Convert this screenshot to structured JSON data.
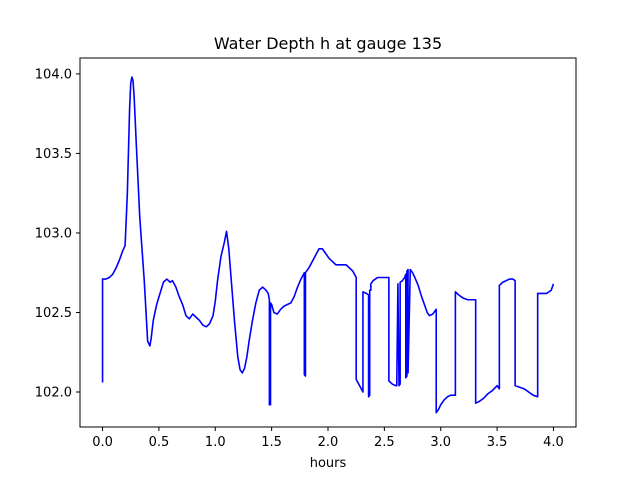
{
  "chart_data": {
    "type": "line",
    "title": "Water Depth h at gauge 135",
    "xlabel": "hours",
    "ylabel": "",
    "xlim": [
      -0.2,
      4.2
    ],
    "ylim": [
      101.78,
      104.1
    ],
    "xticks": [
      0.0,
      0.5,
      1.0,
      1.5,
      2.0,
      2.5,
      3.0,
      3.5,
      4.0
    ],
    "xtick_labels": [
      "0.0",
      "0.5",
      "1.0",
      "1.5",
      "2.0",
      "2.5",
      "3.0",
      "3.5",
      "4.0"
    ],
    "yticks": [
      102.0,
      102.5,
      103.0,
      103.5,
      104.0
    ],
    "ytick_labels": [
      "102.0",
      "102.5",
      "103.0",
      "103.5",
      "104.0"
    ],
    "grid": false,
    "legend": "none",
    "series": [
      {
        "color": "#0000ff",
        "x": [
          0.0,
          0.0,
          0.03,
          0.06,
          0.09,
          0.12,
          0.15,
          0.18,
          0.2,
          0.22,
          0.24,
          0.25,
          0.26,
          0.27,
          0.28,
          0.3,
          0.33,
          0.37,
          0.4,
          0.42,
          0.43,
          0.45,
          0.48,
          0.51,
          0.54,
          0.57,
          0.6,
          0.62,
          0.65,
          0.68,
          0.71,
          0.74,
          0.77,
          0.8,
          0.83,
          0.86,
          0.89,
          0.92,
          0.95,
          0.98,
          1.0,
          1.02,
          1.05,
          1.08,
          1.1,
          1.12,
          1.14,
          1.17,
          1.2,
          1.22,
          1.24,
          1.26,
          1.28,
          1.3,
          1.33,
          1.36,
          1.39,
          1.42,
          1.45,
          1.47,
          1.48,
          1.48,
          1.49,
          1.49,
          1.5,
          1.52,
          1.55,
          1.58,
          1.61,
          1.64,
          1.67,
          1.7,
          1.73,
          1.76,
          1.79,
          1.79,
          1.8,
          1.8,
          1.83,
          1.86,
          1.89,
          1.92,
          1.95,
          1.98,
          2.01,
          2.04,
          2.07,
          2.1,
          2.13,
          2.16,
          2.19,
          2.22,
          2.25,
          2.25,
          2.28,
          2.31,
          2.31,
          2.34,
          2.36,
          2.36,
          2.37,
          2.37,
          2.38,
          2.38,
          2.4,
          2.42,
          2.44,
          2.46,
          2.48,
          2.5,
          2.52,
          2.54,
          2.54,
          2.57,
          2.6,
          2.61,
          2.62,
          2.62,
          2.63,
          2.64,
          2.64,
          2.66,
          2.68,
          2.69,
          2.69,
          2.7,
          2.7,
          2.71,
          2.71,
          2.73,
          2.75,
          2.77,
          2.8,
          2.83,
          2.86,
          2.88,
          2.9,
          2.93,
          2.95,
          2.96,
          2.96,
          2.98,
          3.0,
          3.03,
          3.06,
          3.09,
          3.12,
          3.13,
          3.13,
          3.16,
          3.2,
          3.24,
          3.28,
          3.31,
          3.31,
          3.34,
          3.38,
          3.42,
          3.46,
          3.5,
          3.52,
          3.52,
          3.55,
          3.58,
          3.61,
          3.64,
          3.66,
          3.66,
          3.7,
          3.74,
          3.78,
          3.82,
          3.86,
          3.86,
          3.9,
          3.94,
          3.98,
          4.0
        ],
        "y": [
          102.06,
          102.71,
          102.71,
          102.72,
          102.74,
          102.78,
          102.83,
          102.89,
          102.92,
          103.25,
          103.78,
          103.94,
          103.98,
          103.96,
          103.86,
          103.55,
          103.1,
          102.7,
          102.32,
          102.29,
          102.33,
          102.45,
          102.55,
          102.62,
          102.69,
          102.71,
          102.69,
          102.7,
          102.66,
          102.6,
          102.55,
          102.48,
          102.46,
          102.49,
          102.47,
          102.45,
          102.42,
          102.41,
          102.43,
          102.48,
          102.57,
          102.7,
          102.85,
          102.94,
          103.01,
          102.9,
          102.72,
          102.45,
          102.22,
          102.14,
          102.12,
          102.15,
          102.22,
          102.32,
          102.45,
          102.56,
          102.64,
          102.66,
          102.64,
          102.62,
          102.58,
          101.92,
          101.92,
          102.56,
          102.55,
          102.5,
          102.49,
          102.52,
          102.54,
          102.55,
          102.56,
          102.6,
          102.66,
          102.71,
          102.75,
          102.11,
          102.1,
          102.75,
          102.78,
          102.82,
          102.86,
          102.9,
          102.9,
          102.87,
          102.84,
          102.82,
          102.8,
          102.8,
          102.8,
          102.8,
          102.78,
          102.76,
          102.72,
          102.08,
          102.04,
          102.0,
          102.63,
          102.62,
          102.61,
          101.97,
          101.98,
          102.64,
          102.64,
          102.68,
          102.7,
          102.71,
          102.72,
          102.72,
          102.72,
          102.72,
          102.72,
          102.72,
          102.07,
          102.05,
          102.04,
          102.04,
          102.68,
          102.68,
          102.04,
          102.05,
          102.69,
          102.7,
          102.72,
          102.74,
          102.09,
          102.1,
          102.76,
          102.77,
          102.12,
          102.77,
          102.75,
          102.72,
          102.67,
          102.6,
          102.54,
          102.5,
          102.48,
          102.49,
          102.51,
          102.52,
          101.87,
          101.89,
          101.92,
          101.95,
          101.97,
          101.98,
          101.98,
          101.98,
          102.63,
          102.61,
          102.59,
          102.58,
          102.58,
          102.58,
          101.93,
          101.94,
          101.96,
          101.99,
          102.01,
          102.04,
          102.02,
          102.67,
          102.69,
          102.7,
          102.71,
          102.71,
          102.7,
          102.04,
          102.03,
          102.02,
          102.0,
          101.98,
          101.97,
          102.62,
          102.62,
          102.62,
          102.64,
          102.68
        ]
      }
    ]
  }
}
